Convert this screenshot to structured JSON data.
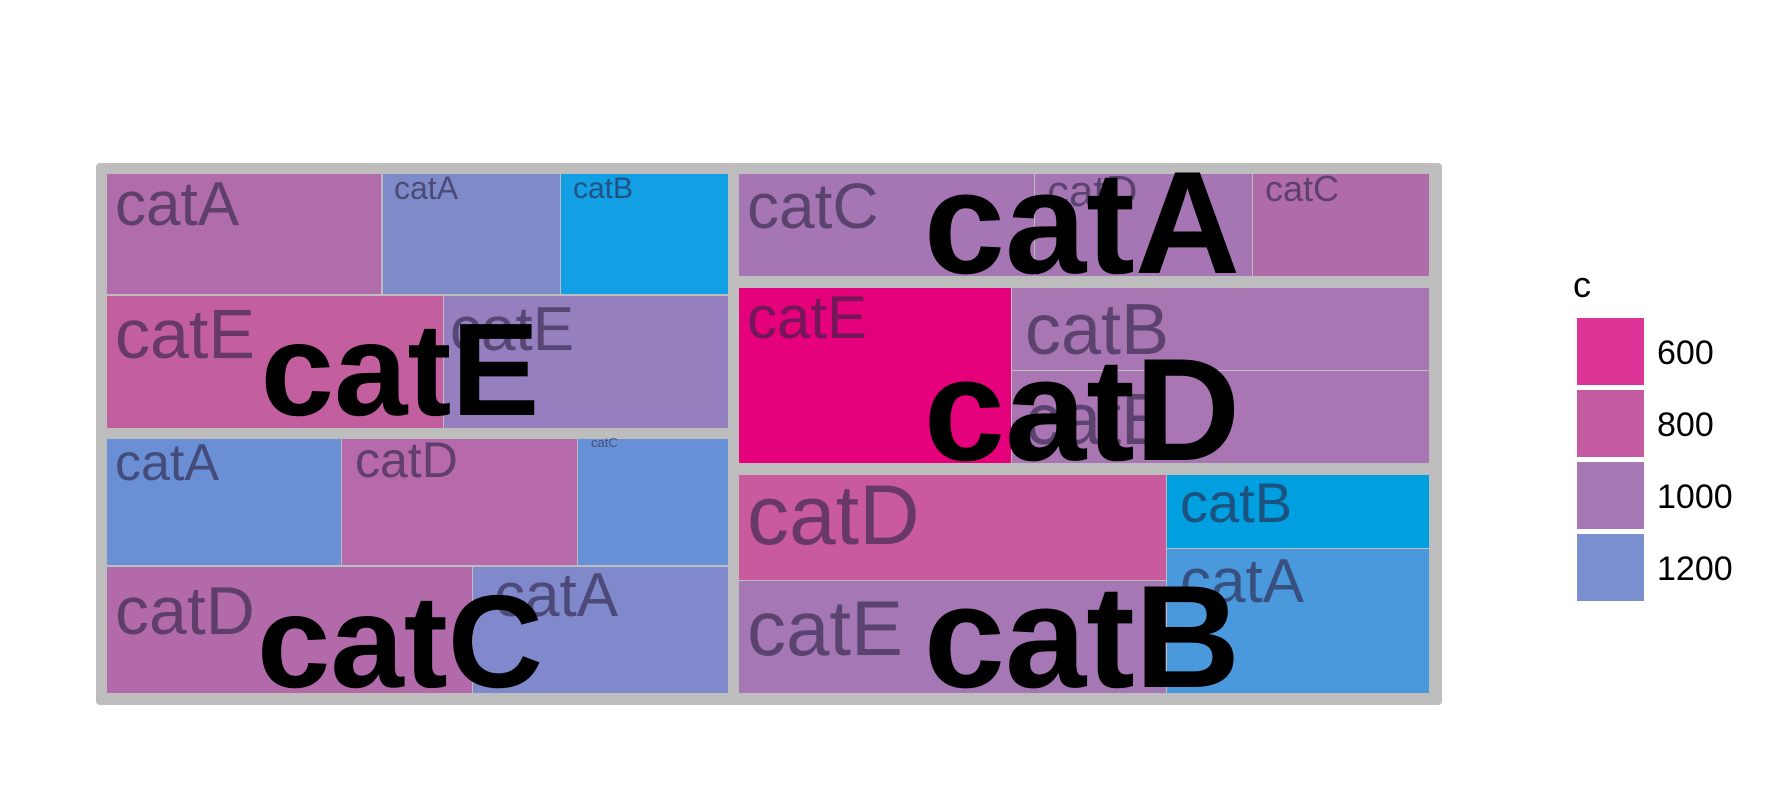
{
  "chart_data": {
    "type": "treemap",
    "legend": {
      "title": "c",
      "position": "right",
      "entries": [
        {
          "label": "600",
          "color": "#dd3497"
        },
        {
          "label": "800",
          "color": "#c45aa0"
        },
        {
          "label": "1000",
          "color": "#a678b5"
        },
        {
          "label": "1200",
          "color": "#7a8fcf"
        }
      ]
    },
    "background_color": "#bdbdbd",
    "groups": [
      {
        "label": "catE",
        "tiles": [
          {
            "label": "catA",
            "color": "#b06cab"
          },
          {
            "label": "catA",
            "color": "#7f8ac9"
          },
          {
            "label": "catB",
            "color": "#129fe3"
          },
          {
            "label": "catE",
            "color": "#c35e9f"
          },
          {
            "label": "catE",
            "color": "#957fbf"
          }
        ]
      },
      {
        "label": "catC",
        "tiles": [
          {
            "label": "catA",
            "color": "#6a8fd4"
          },
          {
            "label": "catD",
            "color": "#b669ab"
          },
          {
            "label": "catC",
            "color": "#6791d6"
          },
          {
            "label": "catD",
            "color": "#b36aab"
          },
          {
            "label": "catA",
            "color": "#8089cc"
          }
        ]
      },
      {
        "label": "catA",
        "tiles": [
          {
            "label": "catC",
            "color": "#a676b4"
          },
          {
            "label": "catD",
            "color": "#a676b4"
          },
          {
            "label": "catC",
            "color": "#b06caa"
          }
        ]
      },
      {
        "label": "catD",
        "tiles": [
          {
            "label": "catE",
            "color": "#e5007c"
          },
          {
            "label": "catB",
            "color": "#a876b3"
          },
          {
            "label": "catE",
            "color": "#a975b3"
          }
        ]
      },
      {
        "label": "catB",
        "tiles": [
          {
            "label": "catD",
            "color": "#c85a9d"
          },
          {
            "label": "catB",
            "color": "#009fe0"
          },
          {
            "label": "catE",
            "color": "#a677b5"
          },
          {
            "label": "catA",
            "color": "#4a99dd"
          }
        ]
      }
    ]
  }
}
